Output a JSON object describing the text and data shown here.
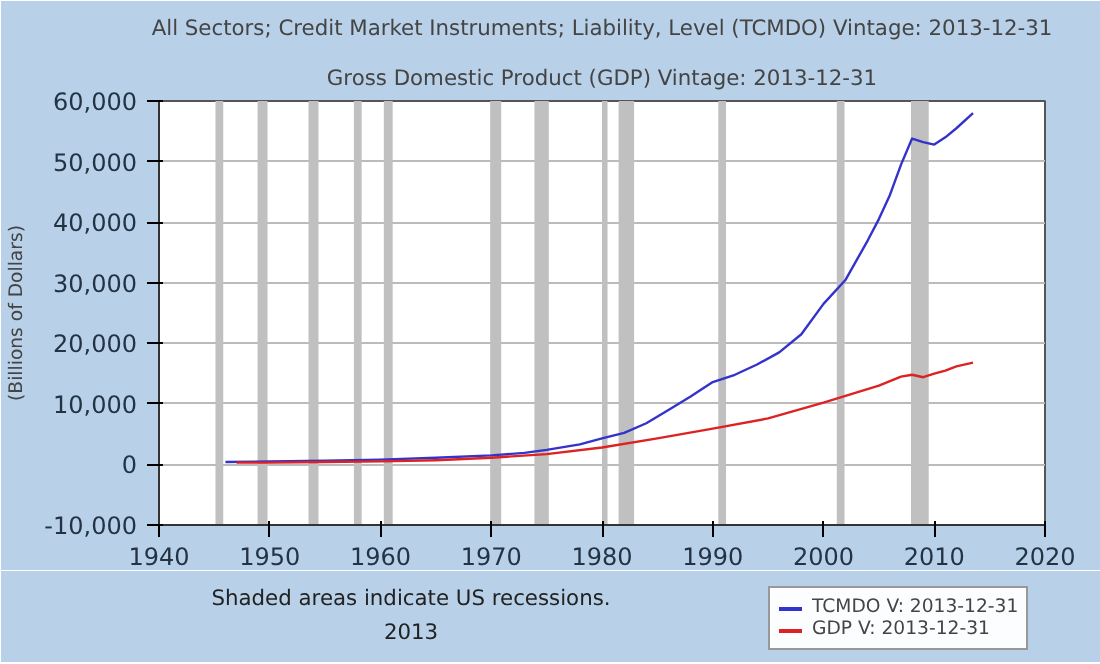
{
  "chart_data": {
    "type": "line",
    "title": "All Sectors; Credit Market Instruments; Liability, Level (TCMDO) Vintage: 2013-12-31",
    "subtitle": "Gross Domestic Product (GDP) Vintage: 2013-12-31",
    "ylabel": "(Billions of Dollars)",
    "annotations": [
      "Shaded areas indicate US recessions.",
      "2013"
    ],
    "series": [
      {
        "name": "TCMDO V: 2013-12-31",
        "color": "#3333cc",
        "x": [
          1946,
          1950,
          1955,
          1960,
          1965,
          1970,
          1973,
          1975,
          1978,
          1980,
          1982,
          1984,
          1986,
          1988,
          1990,
          1992,
          1994,
          1996,
          1998,
          2000,
          2002,
          2004,
          2005,
          2006,
          2007,
          2008,
          2009,
          2010,
          2011,
          2012,
          2013.5
        ],
        "values": [
          400,
          500,
          600,
          800,
          1100,
          1500,
          1900,
          2400,
          3300,
          4300,
          5200,
          6800,
          9000,
          11200,
          13600,
          14800,
          16500,
          18500,
          21500,
          26500,
          30500,
          37000,
          40500,
          44500,
          49500,
          53800,
          53200,
          52800,
          54000,
          55500,
          58000
        ]
      },
      {
        "name": "GDP V: 2013-12-31",
        "color": "#dd2222",
        "x": [
          1947,
          1950,
          1955,
          1960,
          1965,
          1970,
          1975,
          1980,
          1985,
          1990,
          1995,
          2000,
          2005,
          2007,
          2008,
          2009,
          2010,
          2011,
          2012,
          2013.5
        ],
        "values": [
          300,
          300,
          400,
          500,
          700,
          1100,
          1700,
          2800,
          4300,
          5900,
          7600,
          10200,
          13000,
          14500,
          14800,
          14400,
          15000,
          15500,
          16200,
          16800
        ]
      }
    ],
    "xlim": [
      1940,
      2020
    ],
    "xticks": [
      1940,
      1950,
      1960,
      1970,
      1980,
      1990,
      2000,
      2010,
      2020
    ],
    "ylim": [
      -10000,
      60000
    ],
    "yticks": [
      {
        "value": -10000,
        "label": "-10,000"
      },
      0,
      {
        "value": 10000,
        "label": "10,000"
      },
      {
        "value": 20000,
        "label": "20,000"
      },
      {
        "value": 30000,
        "label": "30,000"
      },
      {
        "value": 40000,
        "label": "40,000"
      },
      {
        "value": 50000,
        "label": "50,000"
      },
      {
        "value": 60000,
        "label": "60,000"
      }
    ],
    "bands": [
      {
        "axis": "x",
        "from": 1945.1,
        "to": 1945.8,
        "color": "#c0c0c0"
      },
      {
        "axis": "x",
        "from": 1948.9,
        "to": 1949.8,
        "color": "#c0c0c0"
      },
      {
        "axis": "x",
        "from": 1953.5,
        "to": 1954.4,
        "color": "#c0c0c0"
      },
      {
        "axis": "x",
        "from": 1957.6,
        "to": 1958.3,
        "color": "#c0c0c0"
      },
      {
        "axis": "x",
        "from": 1960.3,
        "to": 1961.1,
        "color": "#c0c0c0"
      },
      {
        "axis": "x",
        "from": 1969.9,
        "to": 1970.9,
        "color": "#c0c0c0"
      },
      {
        "axis": "x",
        "from": 1973.9,
        "to": 1975.2,
        "color": "#c0c0c0"
      },
      {
        "axis": "x",
        "from": 1980.0,
        "to": 1980.5,
        "color": "#c0c0c0"
      },
      {
        "axis": "x",
        "from": 1981.5,
        "to": 1982.9,
        "color": "#c0c0c0"
      },
      {
        "axis": "x",
        "from": 1990.5,
        "to": 1991.2,
        "color": "#c0c0c0"
      },
      {
        "axis": "x",
        "from": 2001.2,
        "to": 2001.9,
        "color": "#c0c0c0"
      },
      {
        "axis": "x",
        "from": 2007.9,
        "to": 2009.5,
        "color": "#c0c0c0"
      }
    ],
    "grid": "y",
    "legend": "bottom right",
    "marker": "none",
    "line_style": "solid"
  }
}
